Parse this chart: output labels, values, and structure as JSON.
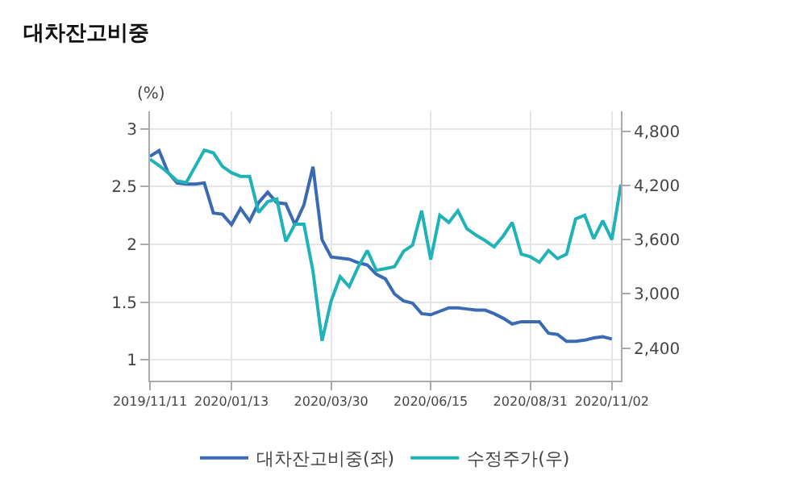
{
  "chart_data": {
    "type": "line",
    "title": "대차잔고비중",
    "ylabel": "(%)",
    "x": [
      "2019-11-11",
      "2019-11-18",
      "2019-11-25",
      "2019-12-02",
      "2019-12-09",
      "2019-12-16",
      "2019-12-23",
      "2019-12-30",
      "2020-01-06",
      "2020-01-13",
      "2020-01-20",
      "2020-01-27",
      "2020-02-03",
      "2020-02-10",
      "2020-02-17",
      "2020-02-24",
      "2020-03-02",
      "2020-03-09",
      "2020-03-16",
      "2020-03-23",
      "2020-03-30",
      "2020-04-06",
      "2020-04-13",
      "2020-04-20",
      "2020-04-27",
      "2020-05-04",
      "2020-05-11",
      "2020-05-18",
      "2020-05-25",
      "2020-06-01",
      "2020-06-08",
      "2020-06-15",
      "2020-06-22",
      "2020-06-29",
      "2020-07-06",
      "2020-07-13",
      "2020-07-20",
      "2020-07-27",
      "2020-08-03",
      "2020-08-10",
      "2020-08-17",
      "2020-08-24",
      "2020-08-31",
      "2020-09-07",
      "2020-09-14",
      "2020-09-21",
      "2020-09-28",
      "2020-10-05",
      "2020-10-12",
      "2020-10-19",
      "2020-10-26",
      "2020-11-02",
      "2020-11-09"
    ],
    "series": [
      {
        "name": "대차잔고비중(좌)",
        "color": "#3a6ab4",
        "values": [
          2.76,
          2.81,
          2.62,
          2.53,
          2.52,
          2.52,
          2.53,
          2.27,
          2.26,
          2.17,
          2.31,
          2.2,
          2.36,
          2.45,
          2.36,
          2.35,
          2.17,
          2.34,
          2.67,
          2.04,
          1.89,
          1.88,
          1.87,
          1.84,
          1.82,
          1.74,
          1.7,
          1.57,
          1.51,
          1.49,
          1.4,
          1.39,
          1.42,
          1.45,
          1.45,
          1.44,
          1.43,
          1.43,
          1.4,
          1.36,
          1.31,
          1.33,
          1.33,
          1.33,
          1.23,
          1.22,
          1.16,
          1.16,
          1.17,
          1.19,
          1.2,
          1.18,
          null
        ]
      },
      {
        "name": "수정주가(우)",
        "color": "#1fb3b8",
        "axis": "y2",
        "values": [
          4490,
          4420,
          4340,
          4250,
          4230,
          4410,
          4590,
          4560,
          4410,
          4340,
          4300,
          4300,
          3900,
          4020,
          4050,
          3580,
          3770,
          3770,
          3250,
          2480,
          2920,
          3190,
          3080,
          3300,
          3480,
          3260,
          3280,
          3300,
          3470,
          3540,
          3920,
          3380,
          3870,
          3790,
          3920,
          3720,
          3650,
          3590,
          3520,
          3640,
          3790,
          3440,
          3410,
          3350,
          3480,
          3390,
          3440,
          3830,
          3870,
          3610,
          3810,
          3600,
          4210
        ]
      }
    ],
    "xlim": [
      "2019-11-11",
      "2020-11-09"
    ],
    "xticks": [
      {
        "value": "2019-11-11",
        "label": "2019/11/11"
      },
      {
        "value": "2020-01-13",
        "label": "2020/01/13"
      },
      {
        "value": "2020-03-30",
        "label": "2020/03/30"
      },
      {
        "value": "2020-06-15",
        "label": "2020/06/15"
      },
      {
        "value": "2020-08-31",
        "label": "2020/08/31"
      },
      {
        "value": "2020-11-02",
        "label": "2020/11/02"
      }
    ],
    "ylim": [
      0.82,
      3.15
    ],
    "yticks": [
      1,
      1.5,
      2,
      2.5,
      3
    ],
    "y2lim": [
      2040,
      5020
    ],
    "y2ticks": [
      {
        "value": 2400,
        "label": "2,400"
      },
      {
        "value": 3000,
        "label": "3,000"
      },
      {
        "value": 3600,
        "label": "3,600"
      },
      {
        "value": 4200,
        "label": "4,200"
      },
      {
        "value": 4800,
        "label": "4,800"
      }
    ],
    "grid": true,
    "legend": "bottom",
    "marker": "none",
    "line_style": "solid"
  }
}
